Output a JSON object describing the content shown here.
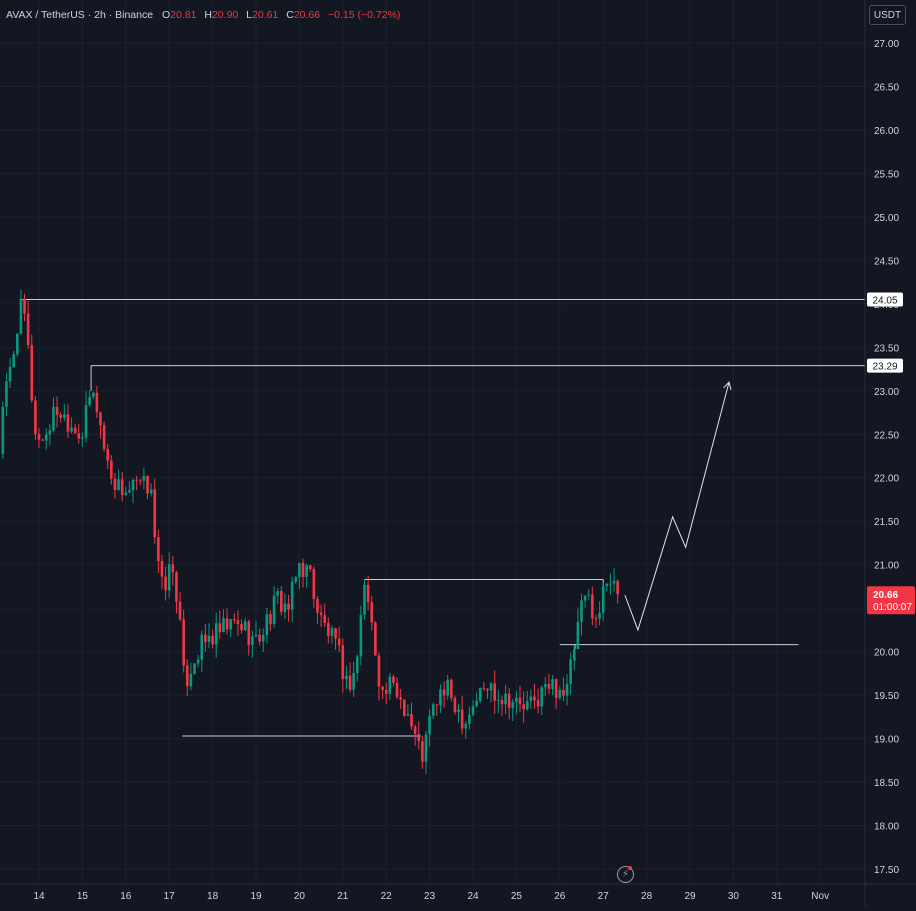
{
  "header": {
    "symbol": "AVAX / TetherUS · 2h · Binance",
    "open_label": "O",
    "open": "20.81",
    "high_label": "H",
    "high": "20.90",
    "low_label": "L",
    "low": "20.61",
    "close_label": "C",
    "close": "20.66",
    "change": "−0.15 (−0.72%)"
  },
  "currency_button": "USDT",
  "price_tag": {
    "price": "20.66",
    "countdown": "01:00:07"
  },
  "level_labels": [
    "24.05",
    "23.29"
  ],
  "colors": {
    "background": "#131722",
    "up": "#089981",
    "down": "#f23645",
    "text": "#d1d4dc",
    "lines": "#c9ccd3"
  },
  "icons": {
    "bottom": "lightning-icon"
  },
  "chart_data": {
    "type": "candlestick",
    "title": "AVAX / TetherUS · 2h · Binance",
    "ylim": [
      17.4,
      27.3
    ],
    "y_ticks": [
      "27.00",
      "26.50",
      "26.00",
      "25.50",
      "25.00",
      "24.50",
      "24.00",
      "23.50",
      "23.00",
      "22.50",
      "22.00",
      "21.50",
      "21.00",
      "20.50",
      "20.00",
      "19.50",
      "19.00",
      "18.50",
      "18.00",
      "17.50"
    ],
    "x_ticks": [
      "14",
      "15",
      "16",
      "17",
      "18",
      "19",
      "20",
      "21",
      "22",
      "23",
      "24",
      "25",
      "26",
      "27",
      "28",
      "29",
      "30",
      "31",
      "Nov"
    ],
    "close_path": [
      [
        "13.0",
        21.9
      ],
      [
        "13.2",
        22.9
      ],
      [
        "13.4",
        23.4
      ],
      [
        "13.55",
        23.95
      ],
      [
        "13.7",
        23.8
      ],
      [
        "13.8",
        23.1
      ],
      [
        "13.95",
        22.4
      ],
      [
        "14.15",
        22.5
      ],
      [
        "14.4",
        22.8
      ],
      [
        "14.6",
        22.7
      ],
      [
        "14.8",
        22.6
      ],
      [
        "15.0",
        22.5
      ],
      [
        "15.2",
        23.0
      ],
      [
        "15.35",
        22.8
      ],
      [
        "15.55",
        22.2
      ],
      [
        "15.8",
        21.9
      ],
      [
        "16.05",
        21.85
      ],
      [
        "16.3",
        21.9
      ],
      [
        "16.5",
        21.9
      ],
      [
        "16.55",
        22.2
      ],
      [
        "16.7",
        21.1
      ],
      [
        "16.85",
        20.7
      ],
      [
        "17.05",
        21.0
      ],
      [
        "17.2",
        20.6
      ],
      [
        "17.35",
        19.6
      ],
      [
        "17.55",
        19.9
      ],
      [
        "17.8",
        20.1
      ],
      [
        "18.1",
        20.2
      ],
      [
        "18.4",
        20.3
      ],
      [
        "18.7",
        20.3
      ],
      [
        "19.0",
        20.1
      ],
      [
        "19.2",
        20.3
      ],
      [
        "19.5",
        20.6
      ],
      [
        "19.75",
        20.5
      ],
      [
        "20.0",
        21.0
      ],
      [
        "20.25",
        20.9
      ],
      [
        "20.45",
        20.4
      ],
      [
        "20.7",
        20.2
      ],
      [
        "20.95",
        19.9
      ],
      [
        "21.1",
        19.6
      ],
      [
        "21.3",
        19.8
      ],
      [
        "21.5",
        20.8
      ],
      [
        "21.7",
        20.2
      ],
      [
        "21.9",
        19.5
      ],
      [
        "22.1",
        19.6
      ],
      [
        "22.3",
        19.5
      ],
      [
        "22.5",
        19.3
      ],
      [
        "22.7",
        18.95
      ],
      [
        "22.85",
        18.8
      ],
      [
        "23.0",
        19.2
      ],
      [
        "23.2",
        19.5
      ],
      [
        "23.4",
        19.55
      ],
      [
        "23.6",
        19.4
      ],
      [
        "23.8",
        19.2
      ],
      [
        "24.0",
        19.4
      ],
      [
        "24.2",
        19.55
      ],
      [
        "24.4",
        19.6
      ],
      [
        "24.6",
        19.5
      ],
      [
        "24.8",
        19.5
      ],
      [
        "25.0",
        19.4
      ],
      [
        "25.2",
        19.35
      ],
      [
        "25.4",
        19.4
      ],
      [
        "25.6",
        19.55
      ],
      [
        "25.8",
        19.6
      ],
      [
        "26.0",
        19.6
      ],
      [
        "26.15",
        19.5
      ],
      [
        "26.35",
        20.1
      ],
      [
        "26.55",
        20.6
      ],
      [
        "26.7",
        20.6
      ],
      [
        "26.9",
        20.3
      ],
      [
        "27.0",
        20.8
      ],
      [
        "27.15",
        20.9
      ],
      [
        "27.3",
        20.81
      ],
      [
        "27.4",
        20.66
      ]
    ],
    "levels": [
      {
        "value": 24.05,
        "from": "13.55",
        "to": "right edge",
        "label": "24.05"
      },
      {
        "value": 23.29,
        "from": "15.2",
        "to": "right edge",
        "label": "23.29"
      },
      {
        "value": 20.83,
        "from": "21.5",
        "to": "27.0"
      },
      {
        "value": 20.08,
        "from": "26.0",
        "to": "31.5"
      },
      {
        "value": 19.03,
        "from": "17.3",
        "to": "22.8"
      }
    ],
    "projection": [
      [
        "27.5",
        20.65
      ],
      [
        "27.8",
        20.25
      ],
      [
        "28.6",
        21.55
      ],
      [
        "28.9",
        21.2
      ],
      [
        "29.9",
        23.1
      ]
    ],
    "last_price": 20.66
  }
}
